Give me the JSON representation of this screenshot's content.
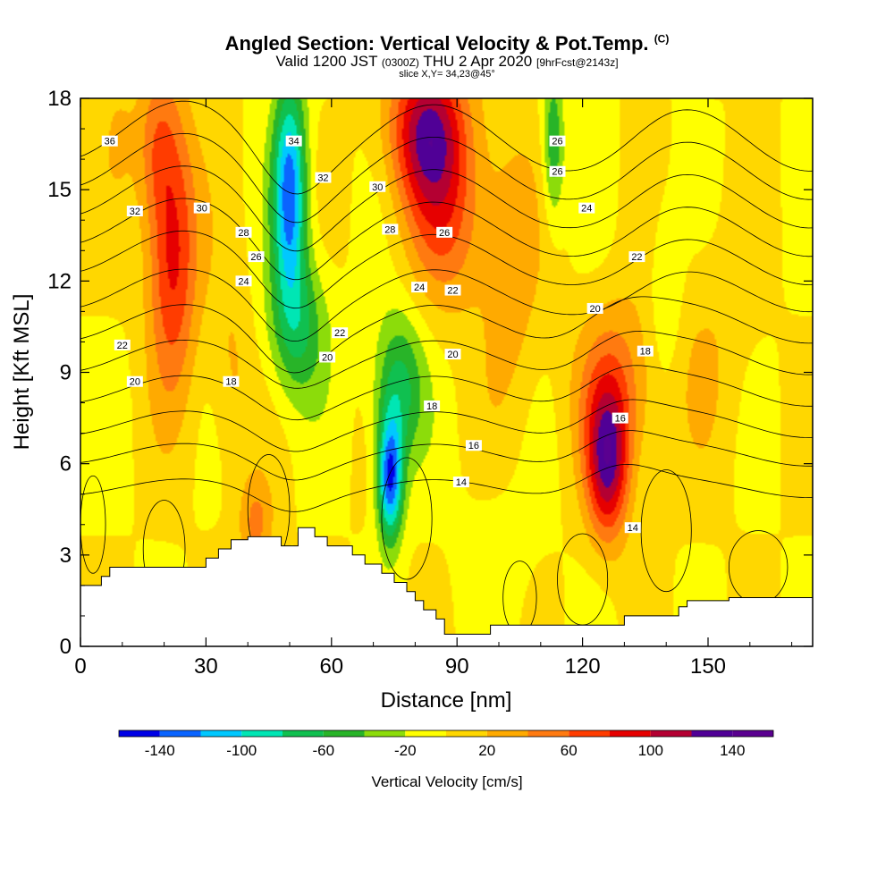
{
  "title": "Angled Section: Vertical Velocity & Pot.Temp.",
  "title_note": "(C)",
  "subtitle_parts": [
    "Valid 1200 JST",
    "(0300Z)",
    "THU 2 Apr 2020",
    "[9hrFcst@2143z]"
  ],
  "slice_label": "slice X,Y= 34,23@45°",
  "chart_data": {
    "type": "heatmap",
    "xlabel": "Distance [nm]",
    "ylabel": "Height [Kft MSL]",
    "xlim": [
      0,
      175
    ],
    "ylim": [
      0,
      18
    ],
    "xticks": [
      0,
      30,
      60,
      90,
      120,
      150
    ],
    "yticks": [
      0,
      3,
      6,
      9,
      12,
      15,
      18
    ],
    "colorbar": {
      "label": "Vertical Velocity [cm/s]",
      "levels": [
        -160,
        -140,
        -120,
        -100,
        -80,
        -60,
        -40,
        -20,
        0,
        20,
        40,
        60,
        80,
        100,
        120,
        140,
        160
      ],
      "colors": [
        "#0000e6",
        "#0a64ff",
        "#00c8ff",
        "#00e6b4",
        "#10c050",
        "#28b428",
        "#8cdc0a",
        "#ffff00",
        "#ffd700",
        "#ffaa00",
        "#ff7a10",
        "#ff3c00",
        "#e60000",
        "#b40032",
        "#500096",
        "#5a0090"
      ],
      "tick_values": [
        -140,
        -100,
        -60,
        -20,
        20,
        60,
        100,
        140
      ],
      "tick_labels": [
        "-140",
        "-100",
        "-60",
        "-20",
        "20",
        "60",
        "100",
        "140"
      ]
    },
    "updrafts": [
      {
        "x": 22,
        "y": 13.0,
        "sx": 6,
        "sy": 4.5,
        "w": 90
      },
      {
        "x": 18,
        "y": 16.5,
        "sx": 5,
        "sy": 2.5,
        "w": 40
      },
      {
        "x": 83,
        "y": 17.0,
        "sx": 9,
        "sy": 2.5,
        "w": 115
      },
      {
        "x": 88,
        "y": 14.0,
        "sx": 10,
        "sy": 3.0,
        "w": 55
      },
      {
        "x": 126,
        "y": 6.0,
        "sx": 5,
        "sy": 2.5,
        "w": 110
      },
      {
        "x": 128,
        "y": 8.5,
        "sx": 10,
        "sy": 3.0,
        "w": 50
      },
      {
        "x": 42,
        "y": 4.0,
        "sx": 4,
        "sy": 1.5,
        "w": 45
      },
      {
        "x": 36,
        "y": 9.0,
        "sx": 5,
        "sy": 3.5,
        "w": 25
      },
      {
        "x": 103,
        "y": 12.0,
        "sx": 7,
        "sy": 5.0,
        "w": 30
      },
      {
        "x": 150,
        "y": 10.0,
        "sx": 10,
        "sy": 4.0,
        "w": 18
      },
      {
        "x": 9,
        "y": 17.0,
        "sx": 4,
        "sy": 2.0,
        "w": 18
      }
    ],
    "downdrafts": [
      {
        "x": 50,
        "y": 15.0,
        "sx": 4,
        "sy": 3.5,
        "w": -130
      },
      {
        "x": 52,
        "y": 10.5,
        "sx": 7,
        "sy": 2.5,
        "w": -60
      },
      {
        "x": 74,
        "y": 5.5,
        "sx": 3,
        "sy": 2.0,
        "w": -140
      },
      {
        "x": 76,
        "y": 8.5,
        "sx": 6,
        "sy": 2.5,
        "w": -70
      },
      {
        "x": 113,
        "y": 16.5,
        "sx": 2.5,
        "sy": 2.5,
        "w": -60
      },
      {
        "x": 100,
        "y": 3.0,
        "sx": 10,
        "sy": 3.0,
        "w": -12
      },
      {
        "x": 140,
        "y": 11.5,
        "sx": 4,
        "sy": 3.0,
        "w": -28
      }
    ],
    "terrain": {
      "x": [
        0,
        5,
        5,
        7,
        7,
        30,
        30,
        33,
        33,
        36,
        36,
        40,
        40,
        48,
        48,
        52,
        52,
        56,
        56,
        59,
        59,
        65,
        65,
        68,
        68,
        72,
        72,
        75,
        75,
        78,
        78,
        80,
        80,
        82,
        82,
        85,
        85,
        87,
        87,
        98,
        98,
        130,
        130,
        143,
        143,
        145,
        145,
        155,
        155,
        158,
        158,
        175
      ],
      "y": [
        2.0,
        2.0,
        2.3,
        2.3,
        2.6,
        2.6,
        2.9,
        2.9,
        3.2,
        3.2,
        3.5,
        3.5,
        3.6,
        3.6,
        3.3,
        3.3,
        3.9,
        3.9,
        3.6,
        3.6,
        3.3,
        3.3,
        3.0,
        3.0,
        2.7,
        2.7,
        2.4,
        2.4,
        2.1,
        2.1,
        1.8,
        1.8,
        1.5,
        1.5,
        1.2,
        1.2,
        0.9,
        0.9,
        0.4,
        0.4,
        0.7,
        0.7,
        1.0,
        1.0,
        1.3,
        1.3,
        1.5,
        1.5,
        1.6,
        1.6,
        1.6,
        1.6
      ]
    },
    "theta_contours": {
      "levels": [
        14,
        16,
        18,
        20,
        22,
        24,
        26,
        28,
        30,
        32,
        34,
        36
      ],
      "base_heights": [
        5.2,
        6.3,
        7.3,
        8.4,
        9.5,
        10.6,
        11.7,
        12.8,
        13.8,
        14.8,
        15.8,
        16.8
      ]
    },
    "contour_labels": [
      {
        "x": 7,
        "y": 16.6,
        "text": "36"
      },
      {
        "x": 51,
        "y": 16.6,
        "text": "34"
      },
      {
        "x": 13,
        "y": 14.3,
        "text": "32"
      },
      {
        "x": 29,
        "y": 14.4,
        "text": "30"
      },
      {
        "x": 58,
        "y": 15.4,
        "text": "32"
      },
      {
        "x": 71,
        "y": 15.1,
        "text": "30"
      },
      {
        "x": 39,
        "y": 13.6,
        "text": "28"
      },
      {
        "x": 42,
        "y": 12.8,
        "text": "26"
      },
      {
        "x": 39,
        "y": 12.0,
        "text": "24"
      },
      {
        "x": 74,
        "y": 13.7,
        "text": "28"
      },
      {
        "x": 87,
        "y": 13.6,
        "text": "26"
      },
      {
        "x": 81,
        "y": 11.8,
        "text": "24"
      },
      {
        "x": 89,
        "y": 11.7,
        "text": "22"
      },
      {
        "x": 114,
        "y": 16.6,
        "text": "26"
      },
      {
        "x": 114,
        "y": 15.6,
        "text": "26"
      },
      {
        "x": 121,
        "y": 14.4,
        "text": "24"
      },
      {
        "x": 133,
        "y": 12.8,
        "text": "22"
      },
      {
        "x": 123,
        "y": 11.1,
        "text": "20"
      },
      {
        "x": 10,
        "y": 9.9,
        "text": "22"
      },
      {
        "x": 13,
        "y": 8.7,
        "text": "20"
      },
      {
        "x": 36,
        "y": 8.7,
        "text": "18"
      },
      {
        "x": 62,
        "y": 10.3,
        "text": "22"
      },
      {
        "x": 59,
        "y": 9.5,
        "text": "20"
      },
      {
        "x": 89,
        "y": 9.6,
        "text": "20"
      },
      {
        "x": 84,
        "y": 7.9,
        "text": "18"
      },
      {
        "x": 94,
        "y": 6.6,
        "text": "16"
      },
      {
        "x": 91,
        "y": 5.4,
        "text": "14"
      },
      {
        "x": 135,
        "y": 9.7,
        "text": "18"
      },
      {
        "x": 129,
        "y": 7.5,
        "text": "16"
      },
      {
        "x": 132,
        "y": 3.9,
        "text": "14"
      }
    ]
  }
}
